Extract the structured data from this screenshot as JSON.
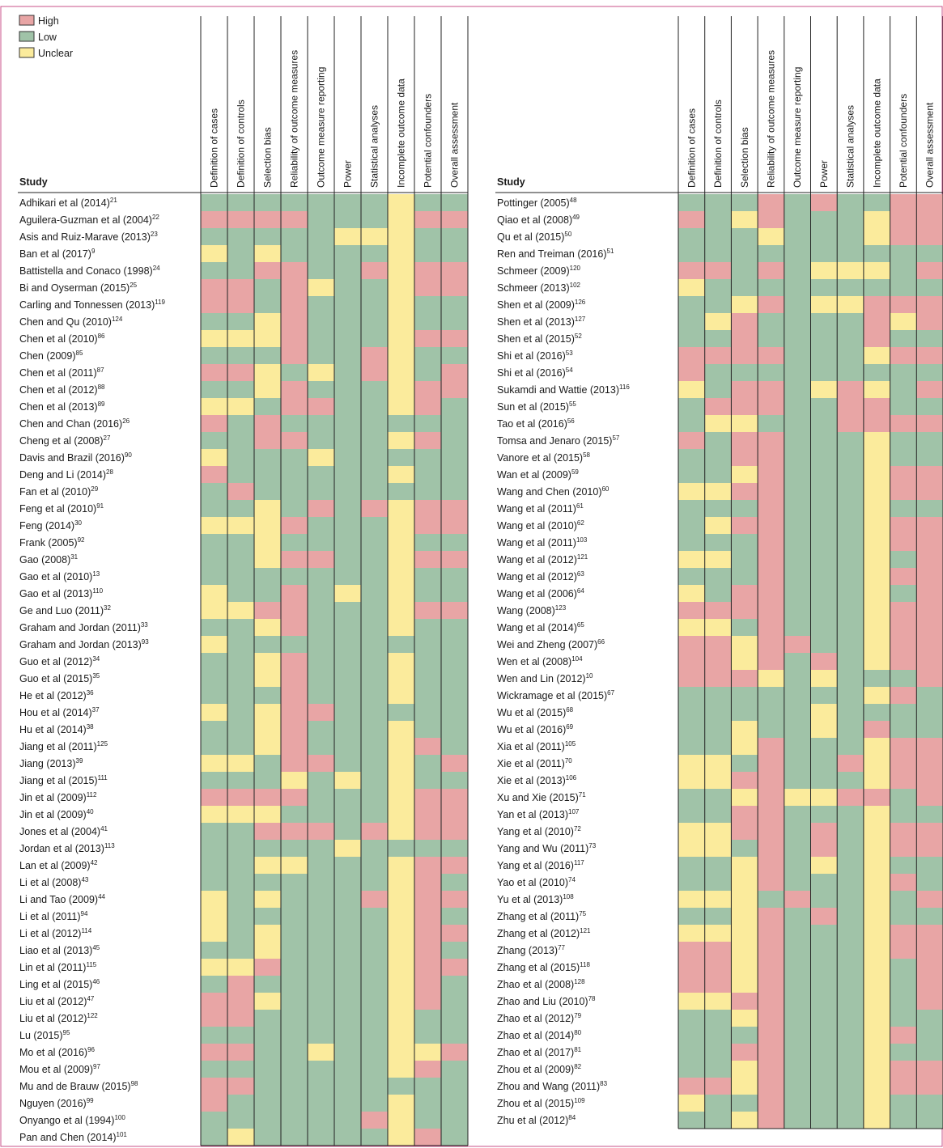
{
  "legend": [
    {
      "label": "High",
      "color": "#e8a5a5"
    },
    {
      "label": "Low",
      "color": "#a0c3a8"
    },
    {
      "label": "Unclear",
      "color": "#fbeb9c"
    }
  ],
  "study_header": "Study",
  "columns": [
    "Definition of cases",
    "Definition of controls",
    "Selection bias",
    "Reliability of outcome measures",
    "Outcome measure reporting",
    "Power",
    "Statistical analyses",
    "Incomplete outcome data",
    "Potential confounders",
    "Overall assessment"
  ],
  "left": {
    "rows": [
      {
        "study": "Adhikari et al (2014)",
        "ref": "21",
        "ratings": "LLLLLLLULL"
      },
      {
        "study": "Aguilera-Guzman et al (2004)",
        "ref": "22",
        "ratings": "HHHHLLLUHH"
      },
      {
        "study": "Asis and Ruiz-Marave (2013)",
        "ref": "23",
        "ratings": "LLLLLUUULL"
      },
      {
        "study": "Ban et al (2017)",
        "ref": "9",
        "ratings": "ULULLLLULL"
      },
      {
        "study": "Battistella and Conaco (1998)",
        "ref": "24",
        "ratings": "LLHHLLHUHH"
      },
      {
        "study": "Bi and Oyserman (2015)",
        "ref": "25",
        "ratings": "HHLHULLUHH"
      },
      {
        "study": "Carling and Tonnessen (2013)",
        "ref": "119",
        "ratings": "HHLHLLLULL"
      },
      {
        "study": "Chen and Qu (2010)",
        "ref": "124",
        "ratings": "LLUHLLLULL"
      },
      {
        "study": "Chen et al (2010)",
        "ref": "86",
        "ratings": "UUUHLLLUHH"
      },
      {
        "study": "Chen (2009)",
        "ref": "85",
        "ratings": "LLLHLLHULL"
      },
      {
        "study": "Chen et al (2011)",
        "ref": "87",
        "ratings": "HHULULHULH"
      },
      {
        "study": "Chen et al (2012)",
        "ref": "88",
        "ratings": "LLUHLLLUHH"
      },
      {
        "study": "Chen et al (2013)",
        "ref": "89",
        "ratings": "UULHHLLUHL"
      },
      {
        "study": "Chen and Chan (2016)",
        "ref": "26",
        "ratings": "HLHLLLLLLL"
      },
      {
        "study": "Cheng et al (2008)",
        "ref": "27",
        "ratings": "LLHHLLLUHL"
      },
      {
        "study": "Davis and Brazil (2016)",
        "ref": "90",
        "ratings": "ULLLULLLLL"
      },
      {
        "study": "Deng and Li (2014)",
        "ref": "28",
        "ratings": "HLLLLLLULL"
      },
      {
        "study": "Fan et al (2010)",
        "ref": "29",
        "ratings": "LHLLLLLLLL"
      },
      {
        "study": "Feng et al (2010)",
        "ref": "91",
        "ratings": "LLULHLHUHH"
      },
      {
        "study": "Feng (2014)",
        "ref": "30",
        "ratings": "UUUHLLLUHH"
      },
      {
        "study": "Frank (2005)",
        "ref": "92",
        "ratings": "LLULLLLULL"
      },
      {
        "study": "Gao (2008)",
        "ref": "31",
        "ratings": "LLUHHLLUHH"
      },
      {
        "study": "Gao et al (2010)",
        "ref": "13",
        "ratings": "LLLLLLLULL"
      },
      {
        "study": "Gao et al (2013)",
        "ref": "110",
        "ratings": "ULLHLULULL"
      },
      {
        "study": "Ge and Luo (2011)",
        "ref": "32",
        "ratings": "UUHHLLLUHH"
      },
      {
        "study": "Graham and Jordan (2011)",
        "ref": "33",
        "ratings": "LLUHLLLULL"
      },
      {
        "study": "Graham and Jordan (2013)",
        "ref": "93",
        "ratings": "ULLLLLLLLL"
      },
      {
        "study": "Guo et al (2012)",
        "ref": "34",
        "ratings": "LLUHLLLULL"
      },
      {
        "study": "Guo et al (2015)",
        "ref": "35",
        "ratings": "LLUHLLLULL"
      },
      {
        "study": "He et al (2012)",
        "ref": "36",
        "ratings": "LLLHLLLULL"
      },
      {
        "study": "Hou et al (2014)",
        "ref": "37",
        "ratings": "ULUHHLLLLL"
      },
      {
        "study": "Hu et al (2014)",
        "ref": "38",
        "ratings": "LLUHLLLULL"
      },
      {
        "study": "Jiang et al (2011)",
        "ref": "125",
        "ratings": "LLUHLLLUHL"
      },
      {
        "study": "Jiang (2013)",
        "ref": "39",
        "ratings": "UULHHLLULH"
      },
      {
        "study": "Jiang et al (2015)",
        "ref": "111",
        "ratings": "LLLULULULL"
      },
      {
        "study": "Jin et al (2009)",
        "ref": "112",
        "ratings": "HHHHLLLUHH"
      },
      {
        "study": "Jin et al (2009)",
        "ref": "40",
        "ratings": "UUULLLLUHH"
      },
      {
        "study": "Jones et al (2004)",
        "ref": "41",
        "ratings": "LLHHHLHUHH"
      },
      {
        "study": "Jordan et al (2013)",
        "ref": "113",
        "ratings": "LLLLLULLLL"
      },
      {
        "study": "Lan et al (2009)",
        "ref": "42",
        "ratings": "LLUULLLUHH"
      },
      {
        "study": "Li et al (2008)",
        "ref": "43",
        "ratings": "LLLLLLLUHL"
      },
      {
        "study": "Li and Tao (2009)",
        "ref": "44",
        "ratings": "ULULLLHUHH"
      },
      {
        "study": "Li et al (2011)",
        "ref": "94",
        "ratings": "ULLLLLLUHL"
      },
      {
        "study": "Li et al (2012)",
        "ref": "114",
        "ratings": "ULULLLLUHH"
      },
      {
        "study": "Liao et al (2013)",
        "ref": "45",
        "ratings": "LLULLLLUHL"
      },
      {
        "study": "Lin et al (2011)",
        "ref": "115",
        "ratings": "UUHLLLLUHH"
      },
      {
        "study": "Ling et al (2015)",
        "ref": "46",
        "ratings": "LHLLLLLUHL"
      },
      {
        "study": "Liu et al (2012)",
        "ref": "47",
        "ratings": "HHULLLLUHL"
      },
      {
        "study": "Liu et al (2012)",
        "ref": "122",
        "ratings": "HHLLLLLULL"
      },
      {
        "study": "Lu (2015)",
        "ref": "95",
        "ratings": "LLLLLLLULL"
      },
      {
        "study": "Mo et al (2016)",
        "ref": "96",
        "ratings": "HHLLULLUUH"
      },
      {
        "study": "Mou et al (2009)",
        "ref": "97",
        "ratings": "LLLLLLLUHL"
      },
      {
        "study": "Mu and de Brauw (2015)",
        "ref": "98",
        "ratings": "HHLLLLLLLL"
      },
      {
        "study": "Nguyen (2016)",
        "ref": "99",
        "ratings": "HLLLLLLULL"
      },
      {
        "study": "Onyango et al (1994)",
        "ref": "100",
        "ratings": "LLLLLLHULL"
      },
      {
        "study": "Pan and Chen (2014)",
        "ref": "101",
        "ratings": "LULLLLLUHL"
      }
    ]
  },
  "right": {
    "rows": [
      {
        "study": "Pottinger (2005)",
        "ref": "48",
        "ratings": "LLLHLHLLHH"
      },
      {
        "study": "Qiao et al (2008)",
        "ref": "49",
        "ratings": "HLUHLLLUHH"
      },
      {
        "study": "Qu et al (2015)",
        "ref": "50",
        "ratings": "LLLULLLUHH"
      },
      {
        "study": "Ren and Treiman (2016)",
        "ref": "51",
        "ratings": "LLLLLLLLLL"
      },
      {
        "study": "Schmeer (2009)",
        "ref": "120",
        "ratings": "HHLHLUUULH"
      },
      {
        "study": "Schmeer (2013)",
        "ref": "102",
        "ratings": "ULLLLLLLLL"
      },
      {
        "study": "Shen et al (2009)",
        "ref": "126",
        "ratings": "LLUHLUUHHH"
      },
      {
        "study": "Shen et al (2013)",
        "ref": "127",
        "ratings": "LUHLLLLHUH"
      },
      {
        "study": "Shen et al (2015)",
        "ref": "52",
        "ratings": "LLHLLLLHLL"
      },
      {
        "study": "Shi et al (2016)",
        "ref": "53",
        "ratings": "HHHHLLLUHH"
      },
      {
        "study": "Shi et al (2016)",
        "ref": "54",
        "ratings": "HLLLLLLLLL"
      },
      {
        "study": "Sukamdi and Wattie (2013)",
        "ref": "116",
        "ratings": "ULHHLUHULH"
      },
      {
        "study": "Sun et al (2015)",
        "ref": "55",
        "ratings": "LHHHLLHHLL"
      },
      {
        "study": "Tao et al (2016)",
        "ref": "56",
        "ratings": "LUULLLHHHH"
      },
      {
        "study": "Tomsa and Jenaro (2015)",
        "ref": "57",
        "ratings": "HLHHLLLULL"
      },
      {
        "study": "Vanore et al (2015)",
        "ref": "58",
        "ratings": "LLHHLLLULL"
      },
      {
        "study": "Wan et al (2009)",
        "ref": "59",
        "ratings": "LLUHLLLUHH"
      },
      {
        "study": "Wang and Chen (2010)",
        "ref": "60",
        "ratings": "UUHHLLLUHH"
      },
      {
        "study": "Wang et al (2011)",
        "ref": "61",
        "ratings": "LLLHLLLULL"
      },
      {
        "study": "Wang et al (2010)",
        "ref": "62",
        "ratings": "LUHHLLLUHH"
      },
      {
        "study": "Wang et al (2011)",
        "ref": "103",
        "ratings": "LLLHLLLUHH"
      },
      {
        "study": "Wang et al (2012)",
        "ref": "121",
        "ratings": "UULHLLLULH"
      },
      {
        "study": "Wang et al (2012)",
        "ref": "63",
        "ratings": "LLLHLLLUHH"
      },
      {
        "study": "Wang et al (2006)",
        "ref": "64",
        "ratings": "ULHHLLLULH"
      },
      {
        "study": "Wang (2008)",
        "ref": "123",
        "ratings": "HHHHLLLUHH"
      },
      {
        "study": "Wang et al (2014)",
        "ref": "65",
        "ratings": "UULHLLLUHH"
      },
      {
        "study": "Wei and Zheng (2007)",
        "ref": "66",
        "ratings": "HHUHHLLUHH"
      },
      {
        "study": "Wen et al (2008)",
        "ref": "104",
        "ratings": "HHUHLHLUHH"
      },
      {
        "study": "Wen and Lin (2012)",
        "ref": "10",
        "ratings": "HHHULULLLH"
      },
      {
        "study": "Wickramage et al (2015)",
        "ref": "67",
        "ratings": "LLLLLLLUHL"
      },
      {
        "study": "Wu et al (2015)",
        "ref": "68",
        "ratings": "LLLLLULLLL"
      },
      {
        "study": "Wu et al (2016)",
        "ref": "69",
        "ratings": "LLULLULHLL"
      },
      {
        "study": "Xia et al (2011)",
        "ref": "105",
        "ratings": "LLUHLLLUHH"
      },
      {
        "study": "Xie et al (2011)",
        "ref": "70",
        "ratings": "UULHLLHUHH"
      },
      {
        "study": "Xie et al (2013)",
        "ref": "106",
        "ratings": "UUHHLLLUHH"
      },
      {
        "study": "Xu and Xie (2015)",
        "ref": "71",
        "ratings": "LLUHUUHHLH"
      },
      {
        "study": "Yan et al (2013)",
        "ref": "107",
        "ratings": "LLHHLLLULL"
      },
      {
        "study": "Yang et al (2010)",
        "ref": "72",
        "ratings": "UUHHLHLUHH"
      },
      {
        "study": "Yang and Wu (2011)",
        "ref": "73",
        "ratings": "UULHLHLUHH"
      },
      {
        "study": "Yang et al (2016)",
        "ref": "117",
        "ratings": "LLUHLULULL"
      },
      {
        "study": "Yao et al (2010)",
        "ref": "74",
        "ratings": "LLUHLLLUHL"
      },
      {
        "study": "Yu et al (2013)",
        "ref": "108",
        "ratings": "UUULHLLULH"
      },
      {
        "study": "Zhang et al (2011)",
        "ref": "75",
        "ratings": "LLUHLHLULL"
      },
      {
        "study": "Zhang et al (2012)",
        "ref": "121",
        "ratings": "UUUHLLLUHH"
      },
      {
        "study": "Zhang (2013)",
        "ref": "77",
        "ratings": "HHUHLLLUHH"
      },
      {
        "study": "Zhang et al (2015)",
        "ref": "118",
        "ratings": "HHUHLLLULH"
      },
      {
        "study": "Zhao et al (2008)",
        "ref": "128",
        "ratings": "HHUHLLLULH"
      },
      {
        "study": "Zhao and Liu (2010)",
        "ref": "78",
        "ratings": "UUHHLLLULH"
      },
      {
        "study": "Zhao et al (2012)",
        "ref": "79",
        "ratings": "LLUHLLLULL"
      },
      {
        "study": "Zhao et al (2014)",
        "ref": "80",
        "ratings": "LLLHLLLUHL"
      },
      {
        "study": "Zhao et al (2017)",
        "ref": "81",
        "ratings": "LLHHLLLULL"
      },
      {
        "study": "Zhou et al (2009)",
        "ref": "82",
        "ratings": "LLUHLLLUHH"
      },
      {
        "study": "Zhou and Wang (2011)",
        "ref": "83",
        "ratings": "HHUHLLLUHH"
      },
      {
        "study": "Zhou et al (2015)",
        "ref": "109",
        "ratings": "ULLHLLLULL"
      },
      {
        "study": "Zhu et al (2012)",
        "ref": "84",
        "ratings": "LLUHLLLULL"
      }
    ]
  }
}
